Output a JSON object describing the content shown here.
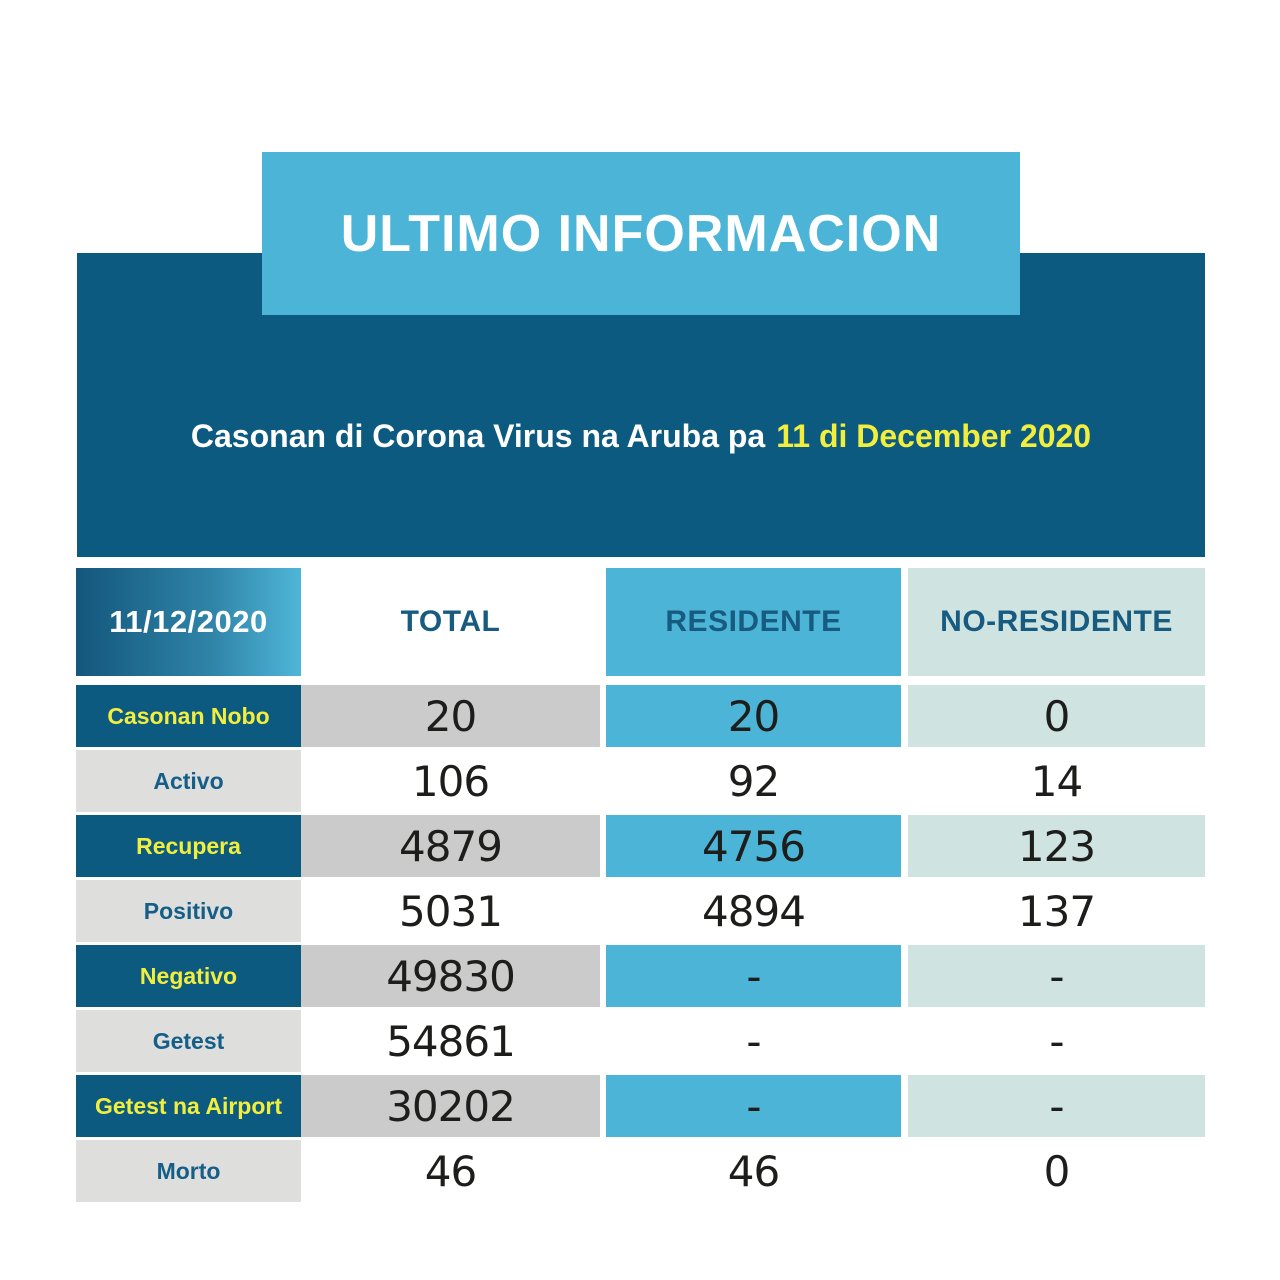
{
  "banner": {
    "title": "ULTIMO INFORMACION"
  },
  "subtitle": {
    "prefix": "Casonan di Corona Virus na Aruba pa",
    "date_highlight": "11 di December 2020"
  },
  "colors": {
    "light_blue": "#4cb5d7",
    "dark_blue": "#0d5a80",
    "yellow": "#f2ee3e",
    "gray_cell": "#cbcbcb",
    "light_gray_cell": "#dededd",
    "pale_teal_cell": "#cfe3e0",
    "header_text_blue": "#175b81",
    "white": "#ffffff",
    "number_black": "#1d1d1b"
  },
  "chart_data": {
    "type": "table",
    "title": "ULTIMO INFORMACION",
    "subtitle": "Casonan di Corona Virus na Aruba pa 11 di December 2020",
    "columns": [
      "11/12/2020",
      "TOTAL",
      "RESIDENTE",
      "NO-RESIDENTE"
    ],
    "rows": [
      {
        "label": "Casonan Nobo",
        "total": "20",
        "residente": "20",
        "no_residente": "0"
      },
      {
        "label": "Activo",
        "total": "106",
        "residente": "92",
        "no_residente": "14"
      },
      {
        "label": "Recupera",
        "total": "4879",
        "residente": "4756",
        "no_residente": "123"
      },
      {
        "label": "Positivo",
        "total": "5031",
        "residente": "4894",
        "no_residente": "137"
      },
      {
        "label": "Negativo",
        "total": "49830",
        "residente": "-",
        "no_residente": "-"
      },
      {
        "label": "Getest",
        "total": "54861",
        "residente": "-",
        "no_residente": "-"
      },
      {
        "label": "Getest na Airport",
        "total": "30202",
        "residente": "-",
        "no_residente": "-"
      },
      {
        "label": "Morto",
        "total": "46",
        "residente": "46",
        "no_residente": "0"
      }
    ]
  }
}
